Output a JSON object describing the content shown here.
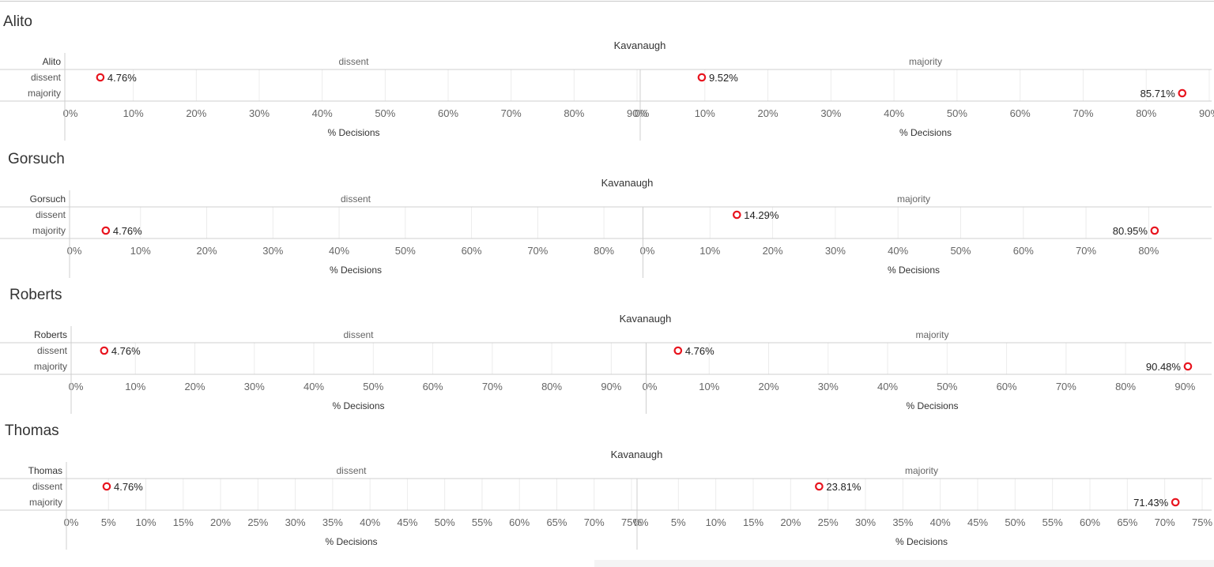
{
  "chart_data": [
    {
      "type": "scatter",
      "title": "Alito",
      "column_header": "Kavanaugh",
      "row_header": "Alito",
      "rows": [
        "dissent",
        "majority"
      ],
      "columns": [
        "dissent",
        "majority"
      ],
      "xlabel": "% Decisions",
      "x_ticks": [
        "0%",
        "10%",
        "20%",
        "30%",
        "40%",
        "50%",
        "60%",
        "70%",
        "80%",
        "90%"
      ],
      "xlim": [
        0,
        90
      ],
      "points": [
        {
          "row": "dissent",
          "col": "dissent",
          "value": 4.76,
          "label": "4.76%"
        },
        {
          "row": "dissent",
          "col": "majority",
          "value": 9.52,
          "label": "9.52%"
        },
        {
          "row": "majority",
          "col": "majority",
          "value": 85.71,
          "label": "85.71%"
        }
      ]
    },
    {
      "type": "scatter",
      "title": "Gorsuch",
      "column_header": "Kavanaugh",
      "row_header": "Gorsuch",
      "rows": [
        "dissent",
        "majority"
      ],
      "columns": [
        "dissent",
        "majority"
      ],
      "xlabel": "% Decisions",
      "x_ticks": [
        "0%",
        "10%",
        "20%",
        "30%",
        "40%",
        "50%",
        "60%",
        "70%",
        "80%"
      ],
      "xlim": [
        0,
        85
      ],
      "points": [
        {
          "row": "majority",
          "col": "dissent",
          "value": 4.76,
          "label": "4.76%"
        },
        {
          "row": "dissent",
          "col": "majority",
          "value": 14.29,
          "label": "14.29%"
        },
        {
          "row": "majority",
          "col": "majority",
          "value": 80.95,
          "label": "80.95%"
        }
      ]
    },
    {
      "type": "scatter",
      "title": "Roberts",
      "column_header": "Kavanaugh",
      "row_header": "Roberts",
      "rows": [
        "dissent",
        "majority"
      ],
      "columns": [
        "dissent",
        "majority"
      ],
      "xlabel": "% Decisions",
      "x_ticks": [
        "0%",
        "10%",
        "20%",
        "30%",
        "40%",
        "50%",
        "60%",
        "70%",
        "80%",
        "90%"
      ],
      "xlim": [
        0,
        95
      ],
      "points": [
        {
          "row": "dissent",
          "col": "dissent",
          "value": 4.76,
          "label": "4.76%"
        },
        {
          "row": "dissent",
          "col": "majority",
          "value": 4.76,
          "label": "4.76%"
        },
        {
          "row": "majority",
          "col": "majority",
          "value": 90.48,
          "label": "90.48%"
        }
      ]
    },
    {
      "type": "scatter",
      "title": "Thomas",
      "column_header": "Kavanaugh",
      "row_header": "Thomas",
      "rows": [
        "dissent",
        "majority"
      ],
      "columns": [
        "dissent",
        "majority"
      ],
      "xlabel": "% Decisions",
      "x_ticks": [
        "0%",
        "5%",
        "10%",
        "15%",
        "20%",
        "25%",
        "30%",
        "35%",
        "40%",
        "45%",
        "50%",
        "55%",
        "60%",
        "65%",
        "70%",
        "75%"
      ],
      "xlim": [
        0,
        75
      ],
      "points": [
        {
          "row": "dissent",
          "col": "dissent",
          "value": 4.76,
          "label": "4.76%"
        },
        {
          "row": "dissent",
          "col": "majority",
          "value": 23.81,
          "label": "23.81%"
        },
        {
          "row": "majority",
          "col": "majority",
          "value": 71.43,
          "label": "71.43%"
        }
      ]
    }
  ],
  "colors": {
    "marker": "#e8141e",
    "gridline": "#ececec",
    "divider": "#cfcfcf"
  }
}
